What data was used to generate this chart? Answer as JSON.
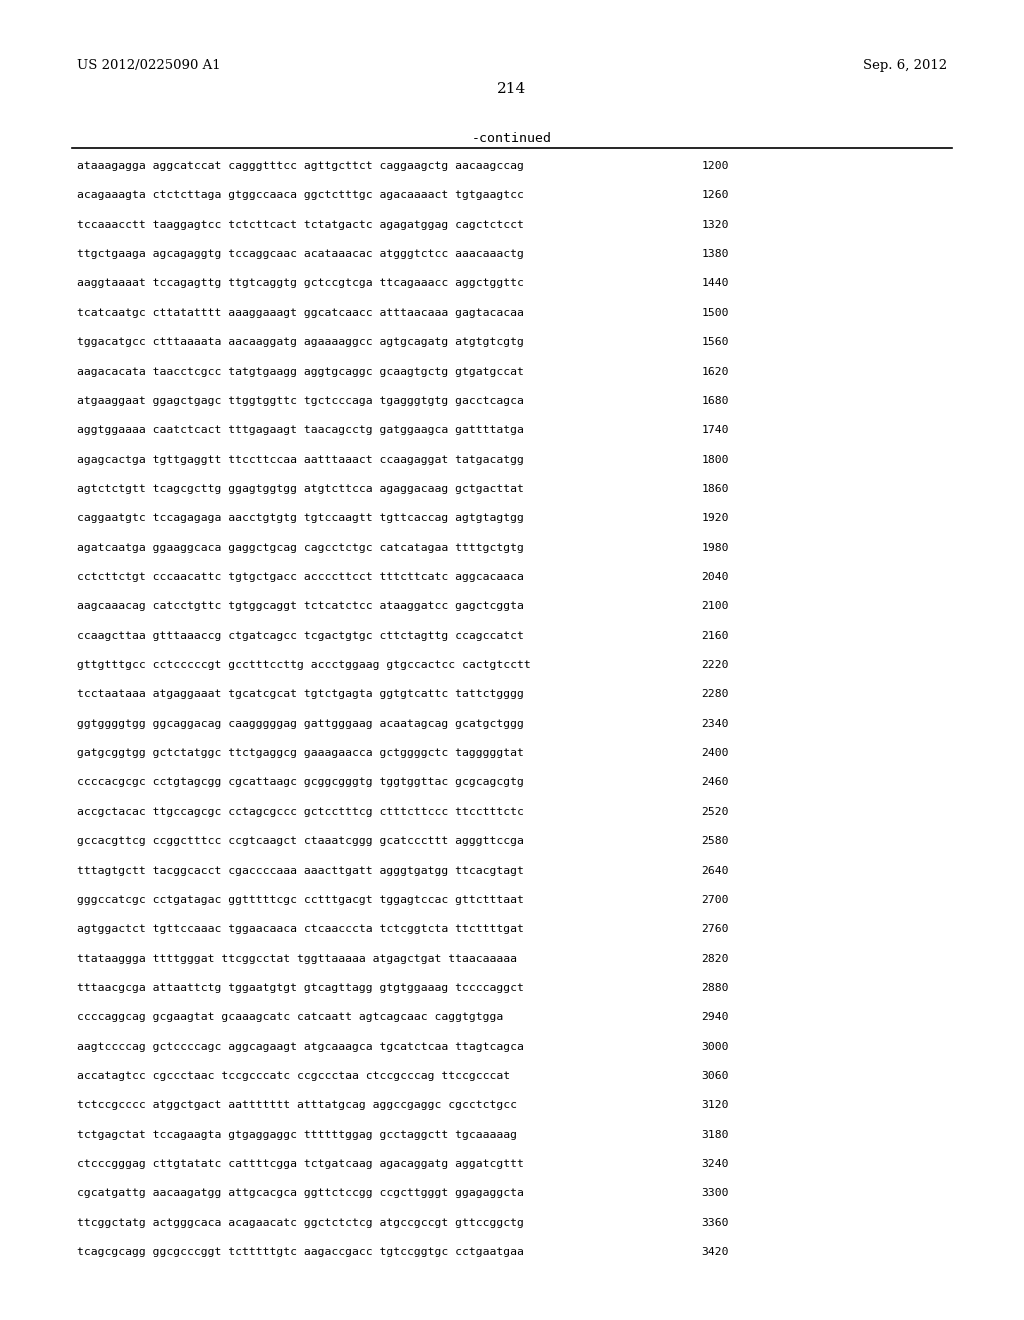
{
  "header_left": "US 2012/0225090 A1",
  "header_right": "Sep. 6, 2012",
  "page_number": "214",
  "continued_label": "-continued",
  "background_color": "#ffffff",
  "text_color": "#000000",
  "sequence_lines": [
    {
      "seq": "ataaagagga aggcatccat cagggtttcc agttgcttct caggaagctg aacaagccag",
      "num": "1200"
    },
    {
      "seq": "acagaaagta ctctcttaga gtggccaaca ggctctttgc agacaaaact tgtgaagtcc",
      "num": "1260"
    },
    {
      "seq": "tccaaacctt taaggagtcc tctcttcact tctatgactc agagatggag cagctctcct",
      "num": "1320"
    },
    {
      "seq": "ttgctgaaga agcagaggtg tccaggcaac acataaacac atgggtctcc aaacaaactg",
      "num": "1380"
    },
    {
      "seq": "aaggtaaaat tccagagttg ttgtcaggtg gctccgtcga ttcagaaacc aggctggttc",
      "num": "1440"
    },
    {
      "seq": "tcatcaatgc cttatatttt aaaggaaagt ggcatcaacc atttaacaaa gagtacacaa",
      "num": "1500"
    },
    {
      "seq": "tggacatgcc ctttaaaata aacaaggatg agaaaaggcc agtgcagatg atgtgtcgtg",
      "num": "1560"
    },
    {
      "seq": "aagacacata taacctcgcc tatgtgaagg aggtgcaggc gcaagtgctg gtgatgccat",
      "num": "1620"
    },
    {
      "seq": "atgaaggaat ggagctgagc ttggtggttc tgctcccaga tgagggtgtg gacctcagca",
      "num": "1680"
    },
    {
      "seq": "aggtggaaaa caatctcact tttgagaagt taacagcctg gatggaagca gattttatga",
      "num": "1740"
    },
    {
      "seq": "agagcactga tgttgaggtt ttccttccaa aatttaaact ccaagaggat tatgacatgg",
      "num": "1800"
    },
    {
      "seq": "agtctctgtt tcagcgcttg ggagtggtgg atgtcttcca agaggacaag gctgacttat",
      "num": "1860"
    },
    {
      "seq": "caggaatgtc tccagagaga aacctgtgtg tgtccaagtt tgttcaccag agtgtagtgg",
      "num": "1920"
    },
    {
      "seq": "agatcaatga ggaaggcaca gaggctgcag cagcctctgc catcatagaa ttttgctgtg",
      "num": "1980"
    },
    {
      "seq": "cctcttctgt cccaacattc tgtgctgacc accccttcct tttcttcatc aggcacaaca",
      "num": "2040"
    },
    {
      "seq": "aagcaaacag catcctgttc tgtggcaggt tctcatctcc ataaggatcc gagctcggta",
      "num": "2100"
    },
    {
      "seq": "ccaagcttaa gtttaaaccg ctgatcagcc tcgactgtgc cttctagttg ccagccatct",
      "num": "2160"
    },
    {
      "seq": "gttgtttgcc cctcccccgt gcctttccttg accctggaag gtgccactcc cactgtcctt",
      "num": "2220"
    },
    {
      "seq": "tcctaataaa atgaggaaat tgcatcgcat tgtctgagta ggtgtcattc tattctgggg",
      "num": "2280"
    },
    {
      "seq": "ggtggggtgg ggcaggacag caagggggag gattgggaag acaatagcag gcatgctggg",
      "num": "2340"
    },
    {
      "seq": "gatgcggtgg gctctatggc ttctgaggcg gaaagaacca gctggggctc tagggggtat",
      "num": "2400"
    },
    {
      "seq": "ccccacgcgc cctgtagcgg cgcattaagc gcggcgggtg tggtggttac gcgcagcgtg",
      "num": "2460"
    },
    {
      "seq": "accgctacac ttgccagcgc cctagcgccc gctcctttcg ctttcttccc ttcctttctc",
      "num": "2520"
    },
    {
      "seq": "gccacgttcg ccggctttcc ccgtcaagct ctaaatcggg gcatcccttt agggttccga",
      "num": "2580"
    },
    {
      "seq": "tttagtgctt tacggcacct cgaccccaaa aaacttgatt agggtgatgg ttcacgtagt",
      "num": "2640"
    },
    {
      "seq": "gggccatcgc cctgatagac ggtttttcgc cctttgacgt tggagtccac gttctttaat",
      "num": "2700"
    },
    {
      "seq": "agtggactct tgttccaaac tggaacaaca ctcaacccta tctcggtcta ttcttttgat",
      "num": "2760"
    },
    {
      "seq": "ttataaggga ttttgggat ttcggcctat tggttaaaaa atgagctgat ttaacaaaaa",
      "num": "2820"
    },
    {
      "seq": "tttaacgcga attaattctg tggaatgtgt gtcagttagg gtgtggaaag tccccaggct",
      "num": "2880"
    },
    {
      "seq": "ccccaggcag gcgaagtat gcaaagcatc catcaatt agtcagcaac caggtgtgga",
      "num": "2940"
    },
    {
      "seq": "aagtccccag gctccccagc aggcagaagt atgcaaagca tgcatctcaa ttagtcagca",
      "num": "3000"
    },
    {
      "seq": "accatagtcc cgccctaac tccgcccatc ccgccctaa ctccgcccag ttccgcccat",
      "num": "3060"
    },
    {
      "seq": "tctccgcccc atggctgact aattttttt atttatgcag aggccgaggc cgcctctgcc",
      "num": "3120"
    },
    {
      "seq": "tctgagctat tccagaagta gtgaggaggc ttttttggag gcctaggctt tgcaaaaag",
      "num": "3180"
    },
    {
      "seq": "ctcccgggag cttgtatatc cattttcgga tctgatcaag agacaggatg aggatcgttt",
      "num": "3240"
    },
    {
      "seq": "cgcatgattg aacaagatgg attgcacgca ggttctccgg ccgcttgggt ggagaggcta",
      "num": "3300"
    },
    {
      "seq": "ttcggctatg actgggcaca acagaacatc ggctctctcg atgccgccgt gttccggctg",
      "num": "3360"
    },
    {
      "seq": "tcagcgcagg ggcgcccggt tctttttgtc aagaccgacc tgtccggtgc cctgaatgaa",
      "num": "3420"
    }
  ]
}
